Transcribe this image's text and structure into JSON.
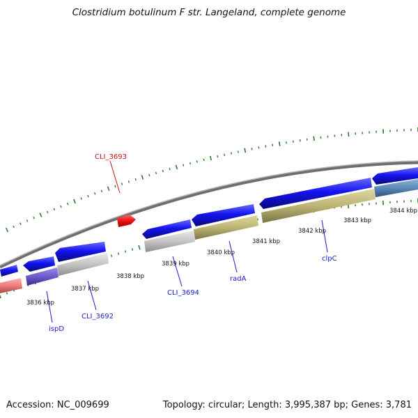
{
  "title": "Clostridium botulinum F str. Langeland, complete genome",
  "footer": {
    "accession": "Accession: NC_009699",
    "summary": "Topology: circular; Length: 3,995,387 bp; Genes: 3,781"
  },
  "colors": {
    "backbone": "#888888",
    "tick": "#2a7a2a",
    "label_blue": "#1a1acc",
    "label_red": "#cc1111"
  },
  "ticks": [
    {
      "label": "3836 kbp"
    },
    {
      "label": "3837 kbp"
    },
    {
      "label": "3838 kbp"
    },
    {
      "label": "3839 kbp"
    },
    {
      "label": "3840 kbp"
    },
    {
      "label": "3841 kbp"
    },
    {
      "label": "3842 kbp"
    },
    {
      "label": "3843 kbp"
    },
    {
      "label": "3844 kbp"
    }
  ],
  "gene_labels": [
    {
      "name": "CLI_3693",
      "color": "red"
    },
    {
      "name": "ispD",
      "color": "blue"
    },
    {
      "name": "CLI_3692",
      "color": "blue"
    },
    {
      "name": "CLI_3694",
      "color": "blue"
    },
    {
      "name": "radA",
      "color": "blue"
    },
    {
      "name": "clpC",
      "color": "blue"
    }
  ]
}
